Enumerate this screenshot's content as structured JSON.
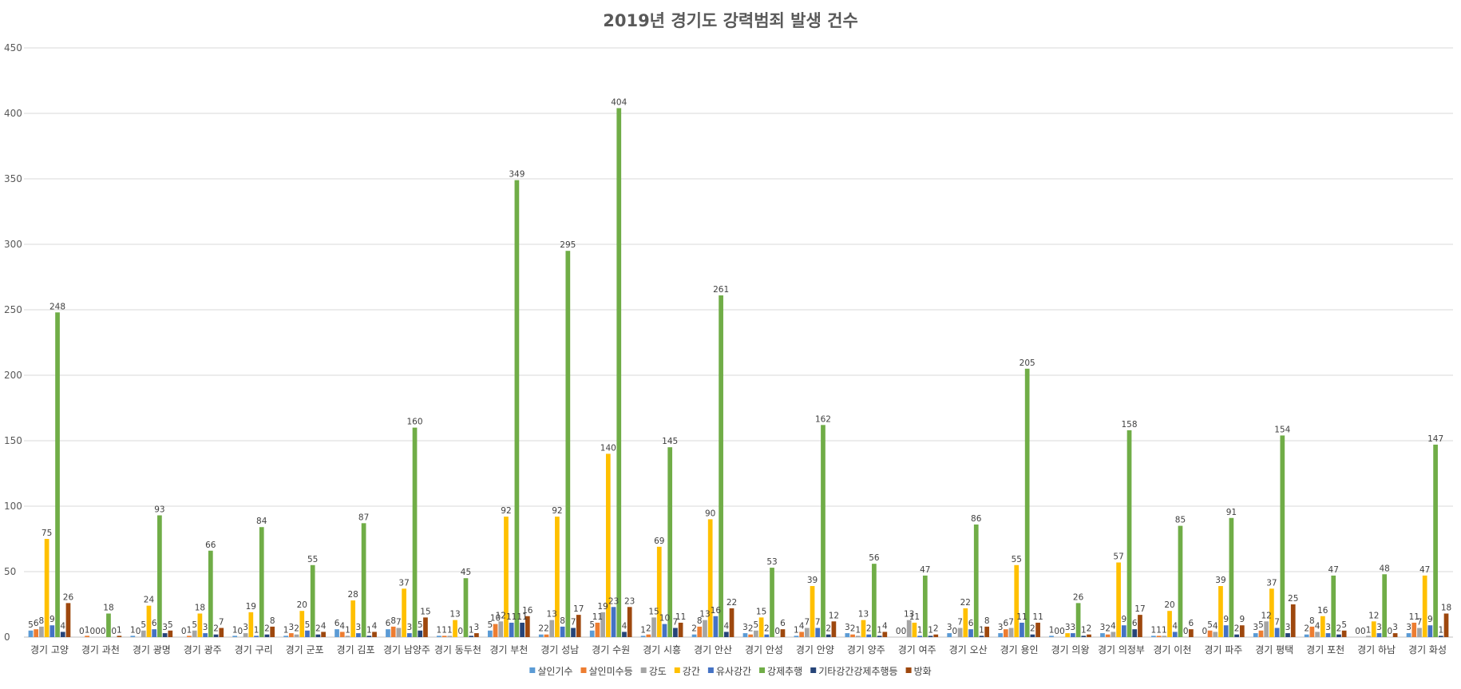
{
  "chart_data": {
    "type": "bar",
    "title": "2019년 경기도 강력범죄 발생 건수",
    "xlabel": "",
    "ylabel": "",
    "ylim": [
      0,
      450
    ],
    "yticks": [
      0,
      50,
      100,
      150,
      200,
      250,
      300,
      350,
      400,
      450
    ],
    "grid": true,
    "legend_position": "bottom",
    "categories": [
      "경기 고양",
      "경기 과천",
      "경기 광명",
      "경기 광주",
      "경기 구리",
      "경기 군포",
      "경기 김포",
      "경기 남양주",
      "경기 동두천",
      "경기 부천",
      "경기 성남",
      "경기 수원",
      "경기 시흥",
      "경기 안산",
      "경기 안성",
      "경기 안양",
      "경기 양주",
      "경기 여주",
      "경기 오산",
      "경기 용인",
      "경기 의왕",
      "경기 의정부",
      "경기 이천",
      "경기 파주",
      "경기 평택",
      "경기 포천",
      "경기 하남",
      "경기 화성"
    ],
    "series": [
      {
        "name": "살인기수",
        "color": "#5B9BD5",
        "values": [
          5,
          0,
          1,
          0,
          1,
          1,
          6,
          6,
          1,
          5,
          2,
          5,
          1,
          2,
          3,
          1,
          3,
          0,
          3,
          3,
          1,
          3,
          1,
          0,
          3,
          2,
          0,
          3
        ]
      },
      {
        "name": "살인미수등",
        "color": "#ED7D31",
        "values": [
          6,
          1,
          0,
          1,
          0,
          3,
          4,
          8,
          1,
          10,
          2,
          11,
          2,
          8,
          2,
          4,
          2,
          0,
          0,
          6,
          0,
          2,
          1,
          5,
          5,
          8,
          0,
          11
        ]
      },
      {
        "name": "강도",
        "color": "#A5A5A5",
        "values": [
          8,
          0,
          5,
          5,
          3,
          2,
          1,
          7,
          1,
          12,
          13,
          19,
          15,
          13,
          5,
          7,
          1,
          13,
          7,
          7,
          0,
          4,
          1,
          4,
          12,
          4,
          1,
          7
        ]
      },
      {
        "name": "강간",
        "color": "#FFC000",
        "values": [
          75,
          0,
          24,
          18,
          19,
          20,
          28,
          37,
          13,
          92,
          92,
          140,
          69,
          90,
          15,
          39,
          13,
          11,
          22,
          55,
          3,
          57,
          20,
          39,
          37,
          16,
          12,
          47
        ]
      },
      {
        "name": "유사강간",
        "color": "#4472C4",
        "values": [
          9,
          0,
          6,
          3,
          1,
          5,
          3,
          3,
          0,
          11,
          8,
          23,
          10,
          16,
          2,
          7,
          2,
          1,
          6,
          11,
          3,
          9,
          4,
          9,
          7,
          3,
          3,
          9
        ]
      },
      {
        "name": "강제추행",
        "color": "#70AD47",
        "values": [
          248,
          18,
          93,
          66,
          84,
          55,
          87,
          160,
          45,
          349,
          295,
          404,
          145,
          261,
          53,
          162,
          56,
          47,
          86,
          205,
          26,
          158,
          85,
          91,
          154,
          47,
          48,
          147
        ]
      },
      {
        "name": "기타강간강제추행등",
        "color": "#264478",
        "values": [
          4,
          0,
          3,
          2,
          2,
          2,
          1,
          5,
          1,
          11,
          7,
          4,
          7,
          4,
          0,
          2,
          1,
          1,
          1,
          2,
          1,
          6,
          0,
          2,
          3,
          2,
          0,
          1
        ]
      },
      {
        "name": "방화",
        "color": "#9E480E",
        "values": [
          26,
          1,
          5,
          7,
          8,
          4,
          4,
          15,
          3,
          16,
          17,
          23,
          11,
          22,
          6,
          12,
          4,
          2,
          8,
          11,
          2,
          17,
          6,
          9,
          25,
          5,
          3,
          18
        ]
      }
    ]
  }
}
